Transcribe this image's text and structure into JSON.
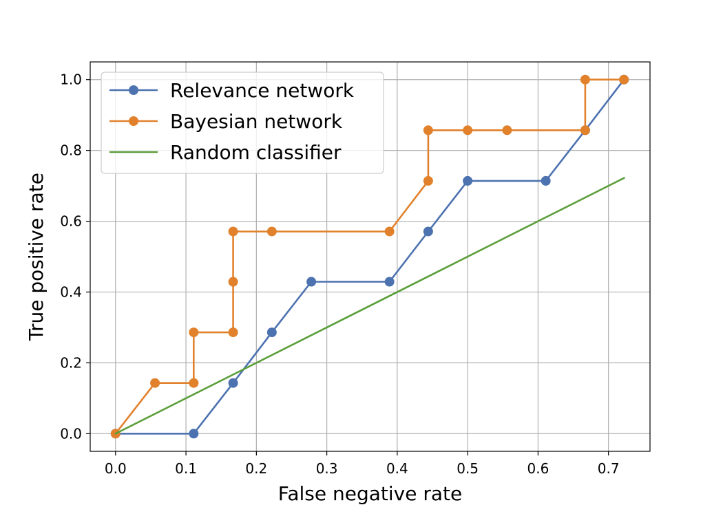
{
  "chart_data": {
    "type": "line",
    "title": "",
    "xlabel": "False negative rate",
    "ylabel": "True positive rate",
    "xlim": [
      -0.036,
      0.759
    ],
    "ylim": [
      -0.05,
      1.05
    ],
    "xticks": [
      "0.0",
      "0.1",
      "0.2",
      "0.3",
      "0.4",
      "0.5",
      "0.6",
      "0.7"
    ],
    "yticks": [
      "0.0",
      "0.2",
      "0.4",
      "0.6",
      "0.8",
      "1.0"
    ],
    "grid": true,
    "legend_position": "top-left",
    "series": [
      {
        "name": "Relevance network",
        "color": "#4c72b0",
        "markers": true,
        "x": [
          0.0,
          0.111,
          0.167,
          0.222,
          0.278,
          0.389,
          0.444,
          0.5,
          0.611,
          0.667,
          0.722
        ],
        "y": [
          0.0,
          0.0,
          0.143,
          0.286,
          0.429,
          0.429,
          0.571,
          0.714,
          0.714,
          0.857,
          1.0
        ]
      },
      {
        "name": "Bayesian network",
        "color": "#e1812c",
        "markers": true,
        "x": [
          0.0,
          0.056,
          0.111,
          0.111,
          0.167,
          0.167,
          0.167,
          0.222,
          0.389,
          0.444,
          0.444,
          0.5,
          0.556,
          0.667,
          0.667,
          0.722
        ],
        "y": [
          0.0,
          0.143,
          0.143,
          0.286,
          0.286,
          0.429,
          0.571,
          0.571,
          0.571,
          0.714,
          0.857,
          0.857,
          0.857,
          0.857,
          1.0,
          1.0
        ]
      },
      {
        "name": "Random classifier",
        "color": "#5b9e3a",
        "markers": false,
        "x": [
          0.0,
          0.722
        ],
        "y": [
          0.0,
          0.722
        ]
      }
    ]
  }
}
